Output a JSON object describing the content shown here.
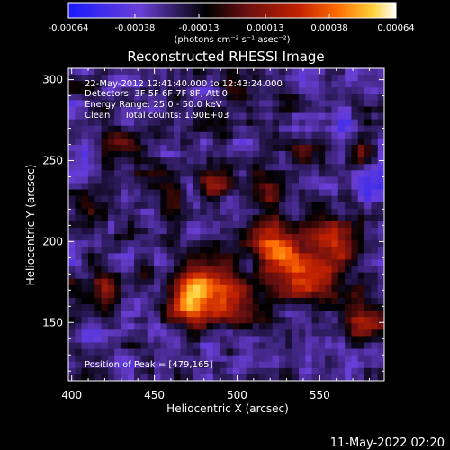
{
  "chart_data": {
    "type": "heatmap",
    "title": "Reconstructed RHESSI Image",
    "xlabel": "Heliocentric X (arcsec)",
    "ylabel": "Heliocentric Y (arcsec)",
    "xlim": [
      398,
      589
    ],
    "ylim": [
      114,
      307
    ],
    "x_ticks": [
      400,
      450,
      500,
      550
    ],
    "y_ticks": [
      150,
      200,
      250,
      300
    ],
    "colorbar": {
      "range": [
        -0.00064,
        0.00064
      ],
      "tick_values": [
        -0.00064,
        -0.00038,
        -0.00013,
        0.00013,
        0.00038,
        0.00064
      ],
      "tick_labels": [
        "-0.00064",
        "-0.00038",
        "-0.00013",
        "0.00013",
        "0.00038",
        "0.00064"
      ],
      "unit_label": "(photons cm⁻² s⁻¹ asec⁻²)",
      "colors": [
        "#1a1aff",
        "#6a3fd6",
        "#000000",
        "#6e1010",
        "#c02000",
        "#ff6a00",
        "#ffd23a",
        "#ffffff"
      ]
    },
    "annotations": {
      "time_range": "22-May-2012 12:41:40.000 to 12:43:24.000",
      "detectors": "Detectors: 3F 5F 6F 7F 8F, Att 0",
      "energy_range": "Energy Range: 25.0 - 50.0 keV",
      "method_counts": "Clean     Total counts: 1.90E+03",
      "peak": "Position of Peak = [479,165]"
    },
    "intensity_map": {
      "grid_cols": 48,
      "grid_rows": 49,
      "note_peak": [
        479,
        165
      ]
    }
  },
  "footer_timestamp": "11-May-2022 02:20"
}
